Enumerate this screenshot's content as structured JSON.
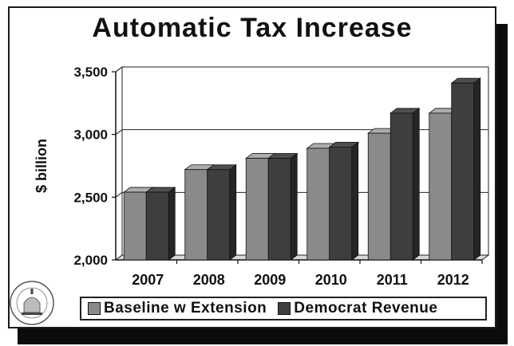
{
  "chart_data": {
    "type": "bar",
    "title": "Automatic Tax Increase",
    "xlabel": "",
    "ylabel": "$ billion",
    "categories": [
      "2007",
      "2008",
      "2009",
      "2010",
      "2011",
      "2012"
    ],
    "series": [
      {
        "name": "Baseline w Extension",
        "color": "#8a8a8a",
        "values": [
          2540,
          2720,
          2810,
          2890,
          3010,
          3170
        ]
      },
      {
        "name": "Democrat Revenue",
        "color": "#3e3e3e",
        "values": [
          2540,
          2720,
          2810,
          2900,
          3170,
          3410
        ]
      }
    ],
    "ylim": [
      2000,
      3500
    ],
    "yticks": [
      2000,
      2500,
      3000,
      3500
    ],
    "ytick_labels": [
      "2,000",
      "2,500",
      "3,000",
      "3,500"
    ],
    "grid": true,
    "legend_position": "bottom"
  },
  "seal_text": "HOUSE BUDGET COMMITTEE"
}
